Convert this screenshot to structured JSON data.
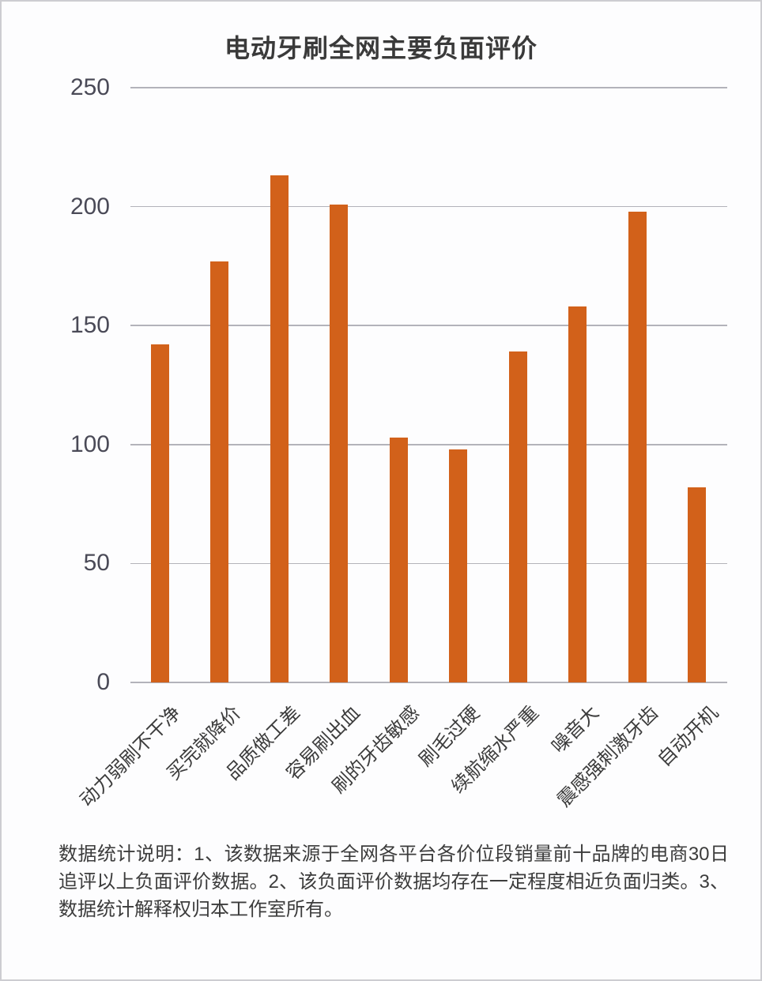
{
  "page": {
    "footnote": "数据统计说明：1、该数据来源于全网各平台各价位段销量前十品牌的电商30日追评以上负面评价数据。2、该负面评价数据均存在一定程度相近负面归类。3、数据统计解释权归本工作室所有。"
  },
  "chart_data": {
    "type": "bar",
    "title": "电动牙刷全网主要负面评价",
    "categories": [
      "动力弱刷不干净",
      "买完就降价",
      "品质做工差",
      "容易刷出血",
      "刷的牙齿敏感",
      "刷毛过硬",
      "续航缩水严重",
      "噪音大",
      "震感强刺激牙齿",
      "自动开机"
    ],
    "values": [
      142,
      177,
      213,
      201,
      103,
      98,
      139,
      158,
      198,
      82
    ],
    "xlabel": "",
    "ylabel": "",
    "ylim": [
      0,
      250
    ],
    "yticks": [
      0,
      50,
      100,
      150,
      200,
      250
    ],
    "grid": true,
    "legend_position": "none",
    "bar_color": "#D2611A",
    "grid_color": "#b3b3ba",
    "title_color": "#3a3a3a",
    "tick_label_color": "#4a4a57"
  }
}
